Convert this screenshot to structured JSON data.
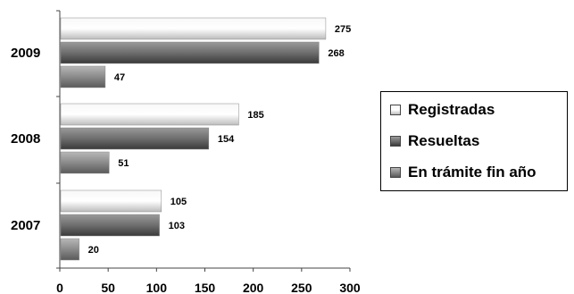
{
  "chart_data": {
    "type": "bar",
    "orientation": "horizontal",
    "categories": [
      "2009",
      "2008",
      "2007"
    ],
    "series": [
      {
        "name": "Registradas",
        "values": [
          275,
          185,
          105
        ],
        "color": "#e6e6e6"
      },
      {
        "name": "Resueltas",
        "values": [
          268,
          154,
          103
        ],
        "color": "#707070"
      },
      {
        "name": "En trámite fin año",
        "values": [
          47,
          51,
          20
        ],
        "color": "#8c8c8c"
      }
    ],
    "x_ticks": [
      "0",
      "50",
      "100",
      "150",
      "200",
      "250",
      "300"
    ],
    "xlim": [
      0,
      300
    ],
    "title": "",
    "xlabel": "",
    "ylabel": "",
    "grid": false,
    "legend_position": "right"
  }
}
